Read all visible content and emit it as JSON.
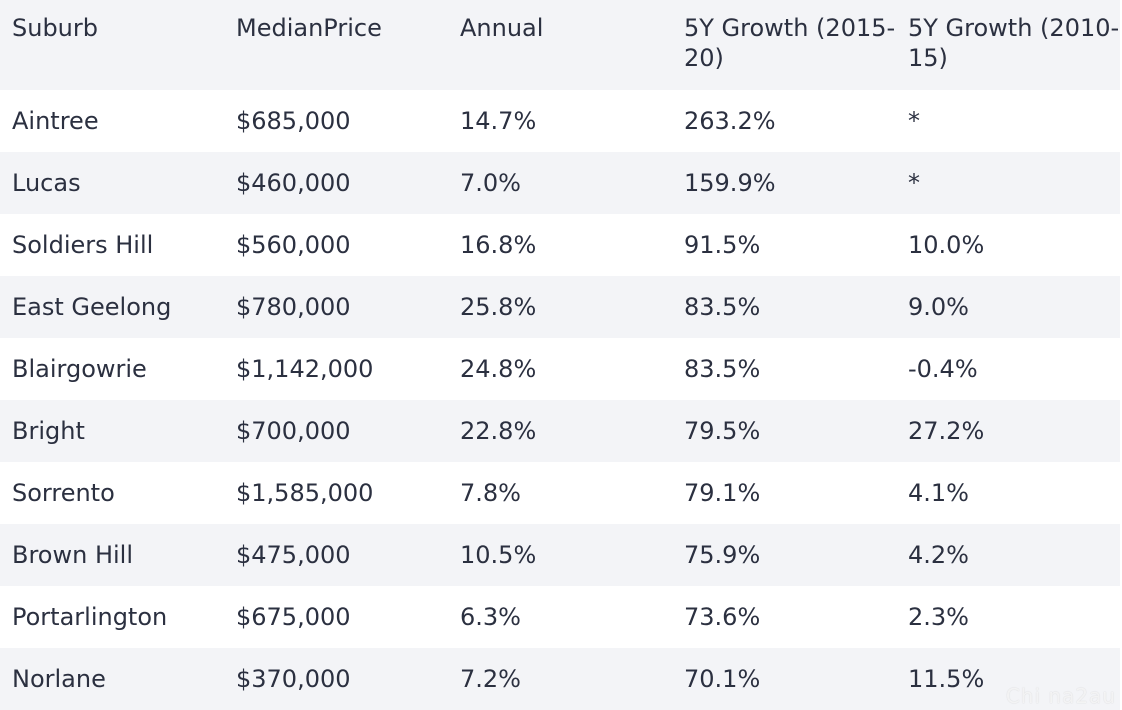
{
  "table": {
    "headers": [
      "Suburb",
      "MedianPrice",
      "Annual",
      "5Y Growth (2015-20)",
      "5Y Growth (2010-15)"
    ],
    "rows": [
      [
        "Aintree",
        "$685,000",
        "14.7%",
        "263.2%",
        "*"
      ],
      [
        "Lucas",
        "$460,000",
        "7.0%",
        "159.9%",
        "*"
      ],
      [
        "Soldiers Hill",
        "$560,000",
        "16.8%",
        "91.5%",
        "10.0%"
      ],
      [
        "East Geelong",
        "$780,000",
        "25.8%",
        "83.5%",
        "9.0%"
      ],
      [
        "Blairgowrie",
        "$1,142,000",
        "24.8%",
        "83.5%",
        "-0.4%"
      ],
      [
        "Bright",
        "$700,000",
        "22.8%",
        "79.5%",
        "27.2%"
      ],
      [
        "Sorrento",
        "$1,585,000",
        "7.8%",
        "79.1%",
        "4.1%"
      ],
      [
        "Brown Hill",
        "$475,000",
        "10.5%",
        "75.9%",
        "4.2%"
      ],
      [
        "Portarlington",
        "$675,000",
        "6.3%",
        "73.6%",
        "2.3%"
      ],
      [
        "Norlane",
        "$370,000",
        "7.2%",
        "70.1%",
        "11.5%"
      ]
    ]
  },
  "watermark": "Chi na2au",
  "colors": {
    "text": "#2b3040",
    "header_bg": "#f3f4f7",
    "stripe_bg": "#f3f4f7",
    "row_bg": "#ffffff"
  }
}
